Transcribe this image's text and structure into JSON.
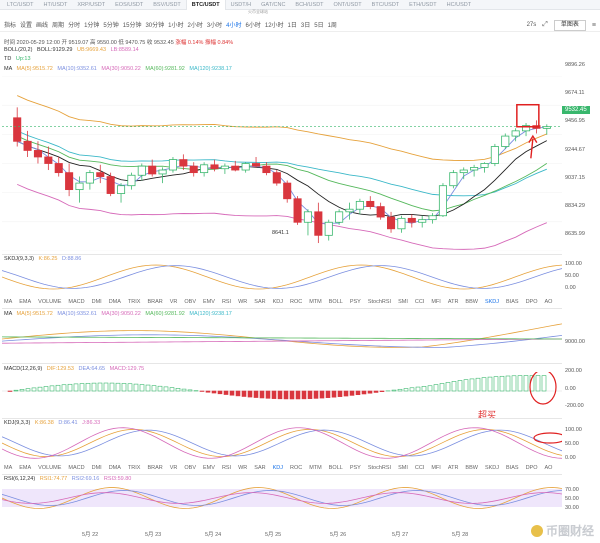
{
  "tabs": [
    {
      "label": "LTC/USDT",
      "active": false
    },
    {
      "label": "HT/USDT",
      "active": false
    },
    {
      "label": "XRP/USDT",
      "active": false
    },
    {
      "label": "EOS/USDT",
      "active": false
    },
    {
      "label": "BSV/USDT",
      "active": false
    },
    {
      "label": "BTC/USDT",
      "active": true
    },
    {
      "label": "USDT/H",
      "active": false
    },
    {
      "label": "GAT/CNC",
      "active": false
    },
    {
      "label": "BCH/USDT",
      "active": false
    },
    {
      "label": "ONT/USDT",
      "active": false
    },
    {
      "label": "BTC/USDT",
      "active": false
    },
    {
      "label": "ETH/USDT",
      "active": false
    },
    {
      "label": "HC/USDT",
      "active": false
    }
  ],
  "tab_sub": "火币全球站",
  "toolbar": {
    "items": [
      "指标",
      "设置",
      "画线",
      "周期",
      "分时",
      "1分钟",
      "5分钟",
      "15分钟",
      "30分钟",
      "1小时",
      "2小时",
      "3小时",
      "4小时",
      "6小时",
      "12小时",
      "1日",
      "3日",
      "5日",
      "1周"
    ],
    "active": "4小时",
    "countdown": "27s",
    "mode": "单图表"
  },
  "ohlc": {
    "time": "时间 2020-05-29 12:00",
    "open": "开 9519.07",
    "high": "高 9550.00",
    "low": "低 9470.75",
    "close": "收 9532.45",
    "change": "涨幅 0.14%",
    "amp": "振幅 0.84%"
  },
  "boll_line": {
    "name": "BOLL(20,2)",
    "mid": "BOLL:9129.29",
    "up": "UB:9669.43",
    "low": "LB:8589.14"
  },
  "td_line": {
    "name": "TD",
    "up": "Up:13"
  },
  "ma_line": {
    "name": "MA",
    "ma5": "MA(5):9515.72",
    "ma10": "MA(10):9352.61",
    "ma30": "MA(30):9050.22",
    "ma60": "MA(60):9281.92",
    "ma120": "MA(120):9238.17"
  },
  "price_axis": [
    "9896.26",
    "9674.11",
    "9456.95",
    "9244.67",
    "9037.15",
    "8834.29",
    "8635.99"
  ],
  "current_price": "9532.45",
  "low_mark": "8641.1",
  "skdj": {
    "name": "SKDJ(9,3,3)",
    "k": "K:86.25",
    "d": "D:88.86",
    "axis": [
      "100.00",
      "50.00",
      "0.00"
    ]
  },
  "indicator_tabs": [
    "MA",
    "EMA",
    "VOLUME",
    "MACD",
    "DMI",
    "DMA",
    "TRIX",
    "BRAR",
    "VR",
    "OBV",
    "EMV",
    "RSI",
    "WR",
    "SAR",
    "KDJ",
    "ROC",
    "MTM",
    "BOLL",
    "PSY",
    "StochRSI",
    "SMI",
    "CCI",
    "MFI",
    "ATR",
    "BBW",
    "SKDJ",
    "BIAS",
    "DPO",
    "AO"
  ],
  "indicator_tabs_active_1": "SKDJ",
  "indicator_tabs_active_2": "KDJ",
  "ma_pane": {
    "name": "MA",
    "ma5": "MA(5):9515.72",
    "ma10": "MA(10):9352.61",
    "ma30": "MA(30):9050.22",
    "ma60": "MA(60):9281.92",
    "ma120": "MA(120):9238.17",
    "axis": [
      "9000.00"
    ]
  },
  "macd": {
    "name": "MACD(12,26,9)",
    "dif": "DIF:129.53",
    "dea": "DEA:64.65",
    "macd": "MACD:129.75",
    "axis": [
      "200.00",
      "0.00",
      "-200.00"
    ]
  },
  "kdj": {
    "name": "KDJ(9,3,3)",
    "k": "K:86.38",
    "d": "D:86.41",
    "j": "J:86.33",
    "axis": [
      "100.00",
      "50.00",
      "0.00"
    ]
  },
  "rsi": {
    "name": "RSI(6,12,24)",
    "r1": "RSI1:74.77",
    "r2": "RSI2:69.16",
    "r3": "RSI3:59.80",
    "axis": [
      "70.00",
      "50.00",
      "30.00"
    ]
  },
  "annotation": "超买",
  "dates": [
    "5月 22",
    "5月 23",
    "5月 24",
    "5月 25",
    "5月 26",
    "5月 27",
    "5月 28"
  ],
  "watermark": "币圈财经",
  "colors": {
    "up": "#39b76d",
    "down": "#d9363e",
    "ma5": "#e6a23c",
    "ma10": "#7b8fe0",
    "ma30": "#d66ab9",
    "ma60": "#55b85c",
    "ma120": "#3bb8c8",
    "boll": "#222222"
  },
  "chart_data": {
    "type": "candlestick",
    "candles": [
      [
        9600,
        9680,
        9380,
        9420
      ],
      [
        9420,
        9500,
        9300,
        9350
      ],
      [
        9350,
        9420,
        9250,
        9300
      ],
      [
        9300,
        9380,
        9200,
        9250
      ],
      [
        9250,
        9300,
        9150,
        9180
      ],
      [
        9180,
        9250,
        9000,
        9050
      ],
      [
        9050,
        9150,
        8950,
        9100
      ],
      [
        9100,
        9200,
        9050,
        9180
      ],
      [
        9180,
        9240,
        9100,
        9150
      ],
      [
        9150,
        9180,
        9000,
        9020
      ],
      [
        9020,
        9100,
        8950,
        9080
      ],
      [
        9080,
        9180,
        9050,
        9160
      ],
      [
        9160,
        9250,
        9120,
        9230
      ],
      [
        9230,
        9280,
        9150,
        9170
      ],
      [
        9170,
        9220,
        9100,
        9200
      ],
      [
        9200,
        9300,
        9180,
        9280
      ],
      [
        9280,
        9320,
        9200,
        9230
      ],
      [
        9230,
        9260,
        9150,
        9180
      ],
      [
        9180,
        9260,
        9150,
        9240
      ],
      [
        9240,
        9280,
        9190,
        9210
      ],
      [
        9210,
        9250,
        9170,
        9230
      ],
      [
        9230,
        9270,
        9190,
        9200
      ],
      [
        9200,
        9260,
        9180,
        9250
      ],
      [
        9250,
        9300,
        9220,
        9230
      ],
      [
        9230,
        9260,
        9160,
        9180
      ],
      [
        9180,
        9200,
        9080,
        9100
      ],
      [
        9100,
        9120,
        8950,
        8980
      ],
      [
        8980,
        9000,
        8780,
        8800
      ],
      [
        8800,
        8900,
        8700,
        8880
      ],
      [
        8880,
        8950,
        8641,
        8700
      ],
      [
        8700,
        8820,
        8660,
        8800
      ],
      [
        8800,
        8900,
        8780,
        8880
      ],
      [
        8880,
        8950,
        8820,
        8900
      ],
      [
        8900,
        8980,
        8860,
        8960
      ],
      [
        8960,
        9000,
        8900,
        8920
      ],
      [
        8920,
        8950,
        8820,
        8840
      ],
      [
        8840,
        8880,
        8720,
        8750
      ],
      [
        8750,
        8850,
        8720,
        8830
      ],
      [
        8830,
        8860,
        8760,
        8800
      ],
      [
        8800,
        8850,
        8760,
        8820
      ],
      [
        8820,
        8870,
        8790,
        8850
      ],
      [
        8850,
        9100,
        8840,
        9080
      ],
      [
        9080,
        9200,
        9060,
        9180
      ],
      [
        9180,
        9220,
        9130,
        9200
      ],
      [
        9200,
        9240,
        9150,
        9220
      ],
      [
        9220,
        9260,
        9180,
        9250
      ],
      [
        9250,
        9400,
        9230,
        9380
      ],
      [
        9380,
        9480,
        9360,
        9460
      ],
      [
        9460,
        9520,
        9420,
        9500
      ],
      [
        9500,
        9560,
        9460,
        9540
      ],
      [
        9540,
        9580,
        9480,
        9519
      ],
      [
        9519,
        9550,
        9470,
        9532
      ]
    ]
  }
}
